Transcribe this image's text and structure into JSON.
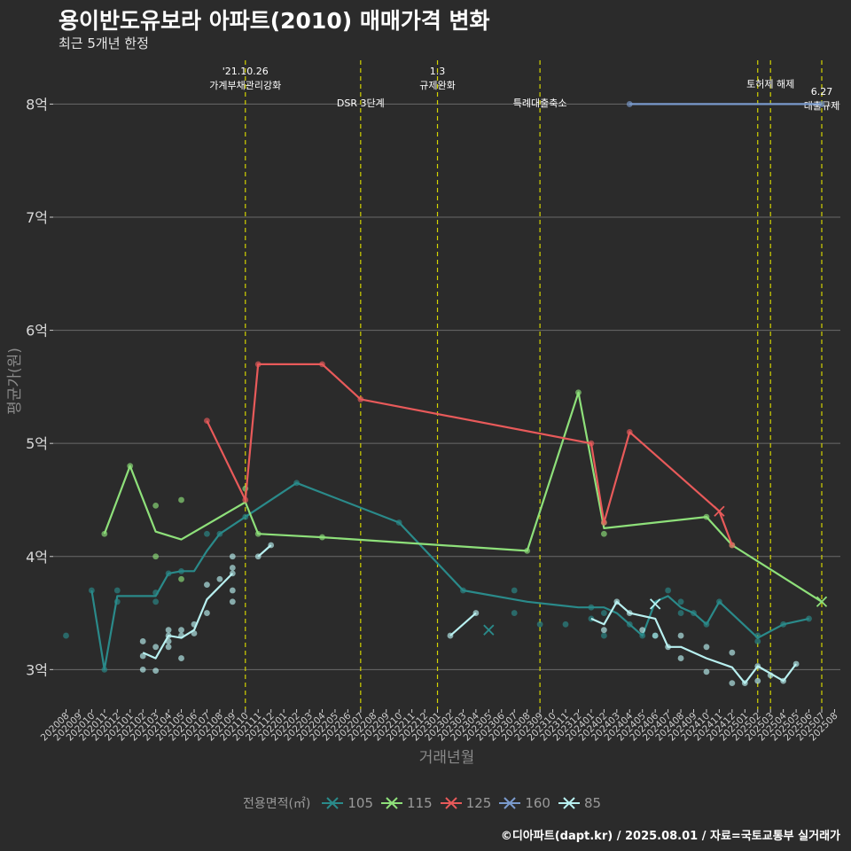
{
  "header": {
    "title": "용이반도유보라 아파트(2010) 매매가격 변화",
    "subtitle": "최근 5개년 한정"
  },
  "caption": "©디아파트(dapt.kr) / 2025.08.01 / 자료=국토교통부 실거래가",
  "legend": {
    "title": "전용면적(㎡)",
    "items": [
      {
        "label": "105",
        "color": "#2a8a8a"
      },
      {
        "label": "115",
        "color": "#8ee07a"
      },
      {
        "label": "125",
        "color": "#e85a5a"
      },
      {
        "label": "160",
        "color": "#7a9acc"
      },
      {
        "label": "85",
        "color": "#b8f0f0"
      }
    ]
  },
  "chart_data": {
    "type": "line",
    "xlabel": "거래년월",
    "ylabel": "평균가(원)",
    "ylim": [
      2.65,
      8.45
    ],
    "y_ticks": [
      {
        "value": 3,
        "label": "3억"
      },
      {
        "value": 4,
        "label": "4억"
      },
      {
        "value": 5,
        "label": "5억"
      },
      {
        "value": 6,
        "label": "6억"
      },
      {
        "value": 7,
        "label": "7억"
      },
      {
        "value": 8,
        "label": "8억"
      }
    ],
    "x_categories": [
      "202008",
      "202009",
      "202010",
      "202011",
      "202012",
      "202101",
      "202102",
      "202103",
      "202104",
      "202105",
      "202106",
      "202107",
      "202108",
      "202109",
      "202110",
      "202111",
      "202112",
      "202201",
      "202202",
      "202203",
      "202204",
      "202205",
      "202206",
      "202207",
      "202208",
      "202209",
      "202210",
      "202211",
      "202212",
      "202301",
      "202302",
      "202303",
      "202304",
      "202305",
      "202306",
      "202307",
      "202308",
      "202309",
      "202310",
      "202311",
      "202312",
      "202401",
      "202402",
      "202403",
      "202404",
      "202405",
      "202406",
      "202407",
      "202408",
      "202409",
      "202410",
      "202411",
      "202412",
      "202501",
      "202502",
      "202503",
      "202504",
      "202505",
      "202506",
      "202507",
      "202508"
    ],
    "events": [
      {
        "x": 14,
        "label": "'21.10.26\n가계부채관리강화",
        "label_y": 8.2
      },
      {
        "x": 23,
        "label": "DSR 3단계",
        "label_y": 7.98
      },
      {
        "x": 29,
        "label": "1.3\n규제완화",
        "label_y": 8.2
      },
      {
        "x": 37,
        "label": "특례대출축소",
        "label_y": 7.98
      },
      {
        "x": 54,
        "label": "",
        "label_y": 8.1
      },
      {
        "x": 55,
        "label": "토허제 해제",
        "label_y": 8.15
      },
      {
        "x": 59,
        "label": "6.27\n대출규제",
        "label_y": 8.02
      }
    ],
    "series": [
      {
        "name": "105",
        "color": "#2a8a8a",
        "line": [
          [
            2,
            3.7
          ],
          [
            3,
            3.0
          ],
          [
            4,
            3.65
          ],
          [
            6,
            3.65
          ],
          [
            7,
            3.65
          ],
          [
            8,
            3.85
          ],
          [
            9,
            3.87
          ],
          [
            10,
            3.87
          ],
          [
            11,
            4.05
          ],
          [
            12,
            4.2
          ],
          [
            14,
            4.35
          ],
          [
            18,
            4.65
          ],
          [
            26,
            4.3
          ],
          [
            31,
            3.7
          ],
          [
            36,
            3.6
          ],
          [
            40,
            3.55
          ],
          [
            42,
            3.55
          ],
          [
            43,
            3.5
          ],
          [
            45,
            3.3
          ],
          [
            46,
            3.6
          ],
          [
            47,
            3.65
          ],
          [
            48,
            3.55
          ],
          [
            49,
            3.5
          ],
          [
            50,
            3.4
          ],
          [
            51,
            3.6
          ],
          [
            54,
            3.28
          ],
          [
            56,
            3.4
          ],
          [
            58,
            3.45
          ]
        ],
        "points": [
          [
            0,
            3.3
          ],
          [
            2,
            3.7
          ],
          [
            3,
            3.0
          ],
          [
            4,
            3.6
          ],
          [
            4,
            3.7
          ],
          [
            7,
            3.6
          ],
          [
            7,
            3.68
          ],
          [
            8,
            3.85
          ],
          [
            9,
            3.87
          ],
          [
            11,
            4.2
          ],
          [
            12,
            4.2
          ],
          [
            14,
            4.35
          ],
          [
            18,
            4.65
          ],
          [
            26,
            4.3
          ],
          [
            31,
            3.7
          ],
          [
            35,
            3.7
          ],
          [
            35,
            3.5
          ],
          [
            37,
            3.4
          ],
          [
            39,
            3.4
          ],
          [
            41,
            3.55
          ],
          [
            41,
            3.45
          ],
          [
            42,
            3.3
          ],
          [
            42,
            3.5
          ],
          [
            44,
            3.4
          ],
          [
            45,
            3.3
          ],
          [
            46,
            3.3
          ],
          [
            47,
            3.7
          ],
          [
            48,
            3.6
          ],
          [
            48,
            3.5
          ],
          [
            49,
            3.5
          ],
          [
            50,
            3.4
          ],
          [
            51,
            3.6
          ],
          [
            54,
            3.3
          ],
          [
            54,
            3.25
          ],
          [
            56,
            3.4
          ],
          [
            58,
            3.45
          ]
        ],
        "x_marks": [
          [
            33,
            3.35
          ],
          [
            46,
            3.58
          ]
        ]
      },
      {
        "name": "115",
        "color": "#8ee07a",
        "line": [
          [
            3,
            4.2
          ],
          [
            5,
            4.8
          ],
          [
            7,
            4.22
          ],
          [
            9,
            4.15
          ],
          [
            14,
            4.48
          ],
          [
            15,
            4.2
          ],
          [
            20,
            4.17
          ],
          [
            36,
            4.05
          ],
          [
            40,
            5.45
          ],
          [
            42,
            4.25
          ],
          [
            50,
            4.35
          ],
          [
            52,
            4.1
          ],
          [
            59,
            3.6
          ]
        ],
        "points": [
          [
            3,
            4.2
          ],
          [
            5,
            4.8
          ],
          [
            7,
            4.45
          ],
          [
            7,
            4.0
          ],
          [
            9,
            4.5
          ],
          [
            9,
            3.8
          ],
          [
            14,
            4.6
          ],
          [
            15,
            4.2
          ],
          [
            20,
            4.17
          ],
          [
            36,
            4.05
          ],
          [
            40,
            5.45
          ],
          [
            42,
            4.3
          ],
          [
            42,
            4.2
          ],
          [
            50,
            4.35
          ],
          [
            52,
            4.1
          ]
        ],
        "x_marks": [
          [
            59,
            3.6
          ]
        ]
      },
      {
        "name": "125",
        "color": "#e85a5a",
        "line": [
          [
            11,
            5.2
          ],
          [
            14,
            4.5
          ],
          [
            15,
            5.7
          ],
          [
            20,
            5.7
          ],
          [
            23,
            5.39
          ],
          [
            41,
            5.0
          ],
          [
            42,
            4.3
          ],
          [
            44,
            5.1
          ],
          [
            51,
            4.4
          ],
          [
            52,
            4.1
          ]
        ],
        "points": [
          [
            11,
            5.2
          ],
          [
            14,
            4.5
          ],
          [
            15,
            5.7
          ],
          [
            20,
            5.7
          ],
          [
            23,
            5.39
          ],
          [
            41,
            5.0
          ],
          [
            42,
            4.3
          ],
          [
            44,
            5.1
          ],
          [
            52,
            4.1
          ]
        ],
        "x_marks": [
          [
            51,
            4.4
          ]
        ]
      },
      {
        "name": "160",
        "color": "#7a9acc",
        "line": [
          [
            44,
            8.0
          ],
          [
            59,
            8.0
          ]
        ],
        "points": [
          [
            44,
            8.0
          ],
          [
            59,
            8.0
          ]
        ],
        "x_marks": []
      },
      {
        "name": "85",
        "color": "#b8f0f0",
        "line": [
          [
            6,
            3.15
          ],
          [
            7,
            3.1
          ],
          [
            8,
            3.3
          ],
          [
            9,
            3.28
          ],
          [
            10,
            3.35
          ],
          [
            11,
            3.62
          ],
          [
            13,
            3.85
          ]
        ],
        "line2": [
          [
            15,
            4.0
          ],
          [
            16,
            4.1
          ]
        ],
        "line3": [
          [
            30,
            3.3
          ],
          [
            32,
            3.5
          ]
        ],
        "line4": [
          [
            41,
            3.45
          ],
          [
            42,
            3.4
          ],
          [
            43,
            3.6
          ],
          [
            44,
            3.5
          ],
          [
            46,
            3.45
          ],
          [
            47,
            3.2
          ],
          [
            48,
            3.2
          ],
          [
            50,
            3.1
          ],
          [
            52,
            3.02
          ],
          [
            53,
            2.88
          ],
          [
            54,
            3.03
          ],
          [
            56,
            2.9
          ],
          [
            57,
            3.05
          ]
        ],
        "points": [
          [
            6,
            3.25
          ],
          [
            6,
            3.12
          ],
          [
            6,
            3.0
          ],
          [
            7,
            3.2
          ],
          [
            7,
            2.99
          ],
          [
            8,
            3.35
          ],
          [
            8,
            3.3
          ],
          [
            8,
            3.25
          ],
          [
            8,
            3.2
          ],
          [
            9,
            3.35
          ],
          [
            9,
            3.3
          ],
          [
            9,
            3.1
          ],
          [
            10,
            3.4
          ],
          [
            10,
            3.32
          ],
          [
            11,
            3.5
          ],
          [
            11,
            3.75
          ],
          [
            12,
            3.8
          ],
          [
            13,
            3.9
          ],
          [
            13,
            3.85
          ],
          [
            13,
            3.7
          ],
          [
            13,
            3.6
          ],
          [
            13,
            4.0
          ],
          [
            15,
            4.0
          ],
          [
            16,
            4.1
          ],
          [
            30,
            3.3
          ],
          [
            32,
            3.5
          ],
          [
            42,
            3.35
          ],
          [
            43,
            3.6
          ],
          [
            44,
            3.5
          ],
          [
            45,
            3.35
          ],
          [
            46,
            3.3
          ],
          [
            47,
            3.2
          ],
          [
            48,
            3.1
          ],
          [
            48,
            3.3
          ],
          [
            50,
            3.2
          ],
          [
            50,
            2.98
          ],
          [
            52,
            3.15
          ],
          [
            52,
            2.88
          ],
          [
            53,
            2.88
          ],
          [
            54,
            3.03
          ],
          [
            54,
            2.9
          ],
          [
            55,
            2.95
          ],
          [
            56,
            2.9
          ],
          [
            57,
            3.05
          ]
        ],
        "x_marks": [
          [
            46,
            3.58
          ]
        ]
      }
    ]
  }
}
